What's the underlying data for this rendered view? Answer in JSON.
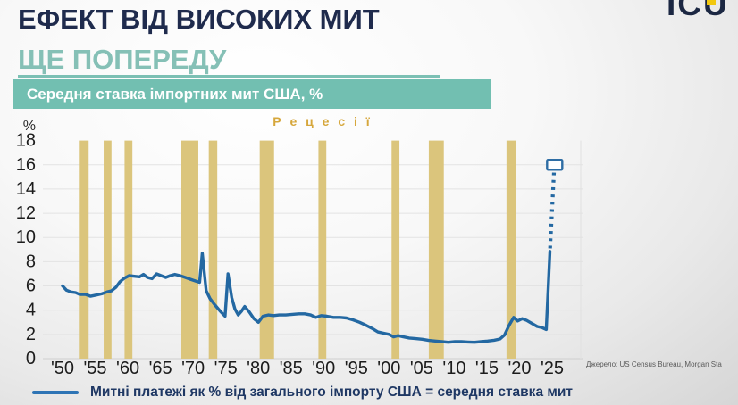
{
  "page": {
    "title_line1": "ЕФЕКТ ВІД ВИСОКИХ МИТ",
    "title_line2": "ЩЕ ПОПЕРЕДУ",
    "logo_text": "ICU",
    "source": "Джерело: US Census Bureau, Morgan Sta"
  },
  "colors": {
    "title_navy": "#1f2b4d",
    "subtitle_teal": "#85c0b6",
    "banner_teal": "#72bfb1",
    "recession_band_gold": "#dbc57c",
    "recessions_label_gold": "#d6a73c",
    "line_blue": "#2368a2",
    "legend_navy": "#1f3864",
    "logo_accent_yellow": "#f2c80f"
  },
  "chart_data": {
    "type": "line",
    "title": "Середня ставка імпортних мит США, %",
    "ylabel": "%",
    "xlabel": "",
    "recessions_label": "Р е ц е с і ї",
    "legend": "Митні платежі як % від загального імпорту США = середня ставка мит",
    "grid": true,
    "legend_position": "bottom",
    "ylim": [
      0,
      18
    ],
    "y_ticks": [
      0,
      2,
      4,
      6,
      8,
      10,
      12,
      14,
      16,
      18
    ],
    "y_gridlines": [
      2,
      4,
      6,
      8,
      10,
      12,
      14,
      16
    ],
    "x_ticks": [
      {
        "year": 1950,
        "label": "'50"
      },
      {
        "year": 1955,
        "label": "'55"
      },
      {
        "year": 1960,
        "label": "'60"
      },
      {
        "year": 1965,
        "label": "'65"
      },
      {
        "year": 1970,
        "label": "'70"
      },
      {
        "year": 1975,
        "label": "'75"
      },
      {
        "year": 1980,
        "label": "'80"
      },
      {
        "year": 1985,
        "label": "'85"
      },
      {
        "year": 1990,
        "label": "'90"
      },
      {
        "year": 1995,
        "label": "'95"
      },
      {
        "year": 2000,
        "label": "'00"
      },
      {
        "year": 2005,
        "label": "'05"
      },
      {
        "year": 2010,
        "label": "'10"
      },
      {
        "year": 2015,
        "label": "'15"
      },
      {
        "year": 2020,
        "label": "'20"
      },
      {
        "year": 2025,
        "label": "'25"
      }
    ],
    "recession_bands": [
      [
        1952.5,
        1954.0
      ],
      [
        1956.3,
        1957.5
      ],
      [
        1959.5,
        1960.7
      ],
      [
        1968.2,
        1970.8
      ],
      [
        1972.4,
        1973.7
      ],
      [
        1980.2,
        1982.4
      ],
      [
        1989.2,
        1990.4
      ],
      [
        2000.4,
        2001.6
      ],
      [
        2006.1,
        2008.4
      ],
      [
        2018.0,
        2019.4
      ]
    ],
    "series": [
      {
        "name": "Митні платежі як % від загального імпорту США = середня ставка мит",
        "points": [
          [
            1950.0,
            6.0
          ],
          [
            1950.6,
            5.65
          ],
          [
            1951.3,
            5.5
          ],
          [
            1952.0,
            5.45
          ],
          [
            1952.6,
            5.3
          ],
          [
            1953.5,
            5.3
          ],
          [
            1954.3,
            5.15
          ],
          [
            1955.2,
            5.25
          ],
          [
            1956.0,
            5.35
          ],
          [
            1956.8,
            5.5
          ],
          [
            1957.5,
            5.6
          ],
          [
            1958.2,
            5.9
          ],
          [
            1958.8,
            6.35
          ],
          [
            1959.5,
            6.65
          ],
          [
            1960.2,
            6.85
          ],
          [
            1961.0,
            6.8
          ],
          [
            1961.8,
            6.75
          ],
          [
            1962.4,
            6.95
          ],
          [
            1963.0,
            6.7
          ],
          [
            1963.7,
            6.6
          ],
          [
            1964.4,
            7.0
          ],
          [
            1965.1,
            6.85
          ],
          [
            1965.8,
            6.7
          ],
          [
            1966.5,
            6.85
          ],
          [
            1967.2,
            6.95
          ],
          [
            1968.0,
            6.85
          ],
          [
            1968.8,
            6.7
          ],
          [
            1969.6,
            6.55
          ],
          [
            1970.4,
            6.4
          ],
          [
            1971.0,
            6.3
          ],
          [
            1971.4,
            8.7
          ],
          [
            1972.0,
            5.6
          ],
          [
            1972.6,
            4.95
          ],
          [
            1973.3,
            4.45
          ],
          [
            1974.1,
            3.95
          ],
          [
            1974.9,
            3.5
          ],
          [
            1975.35,
            7.0
          ],
          [
            1975.9,
            5.05
          ],
          [
            1976.4,
            4.1
          ],
          [
            1976.9,
            3.6
          ],
          [
            1977.4,
            3.9
          ],
          [
            1977.9,
            4.3
          ],
          [
            1978.6,
            3.85
          ],
          [
            1979.3,
            3.3
          ],
          [
            1980.0,
            3.0
          ],
          [
            1980.7,
            3.5
          ],
          [
            1981.5,
            3.6
          ],
          [
            1982.3,
            3.55
          ],
          [
            1983.2,
            3.6
          ],
          [
            1984.2,
            3.6
          ],
          [
            1985.2,
            3.65
          ],
          [
            1986.2,
            3.7
          ],
          [
            1987.1,
            3.7
          ],
          [
            1988.0,
            3.6
          ],
          [
            1988.8,
            3.4
          ],
          [
            1989.6,
            3.55
          ],
          [
            1990.5,
            3.5
          ],
          [
            1991.5,
            3.4
          ],
          [
            1992.5,
            3.4
          ],
          [
            1993.5,
            3.35
          ],
          [
            1994.5,
            3.2
          ],
          [
            1995.5,
            3.0
          ],
          [
            1996.5,
            2.75
          ],
          [
            1997.4,
            2.5
          ],
          [
            1998.3,
            2.2
          ],
          [
            1999.2,
            2.1
          ],
          [
            2000.0,
            2.0
          ],
          [
            2000.7,
            1.8
          ],
          [
            2001.4,
            1.9
          ],
          [
            2002.2,
            1.8
          ],
          [
            2003.1,
            1.7
          ],
          [
            2004.1,
            1.65
          ],
          [
            2005.1,
            1.6
          ],
          [
            2006.1,
            1.5
          ],
          [
            2007.1,
            1.45
          ],
          [
            2008.1,
            1.4
          ],
          [
            2009.1,
            1.35
          ],
          [
            2010.1,
            1.4
          ],
          [
            2011.1,
            1.4
          ],
          [
            2012.1,
            1.37
          ],
          [
            2013.1,
            1.35
          ],
          [
            2014.1,
            1.4
          ],
          [
            2015.1,
            1.45
          ],
          [
            2016.1,
            1.52
          ],
          [
            2017.0,
            1.62
          ],
          [
            2017.7,
            1.95
          ],
          [
            2018.4,
            2.75
          ],
          [
            2019.1,
            3.4
          ],
          [
            2019.7,
            3.1
          ],
          [
            2020.4,
            3.3
          ],
          [
            2021.1,
            3.15
          ],
          [
            2021.9,
            2.9
          ],
          [
            2022.7,
            2.65
          ],
          [
            2023.5,
            2.55
          ],
          [
            2024.1,
            2.4
          ],
          [
            2024.65,
            8.85
          ]
        ]
      }
    ],
    "projection": {
      "style": "dotted",
      "points": [
        [
          2024.68,
          9.1
        ],
        [
          2025.28,
          15.45
        ]
      ],
      "marker": [
        2025.38,
        16.0
      ],
      "marker_shape": "square-outline"
    }
  }
}
